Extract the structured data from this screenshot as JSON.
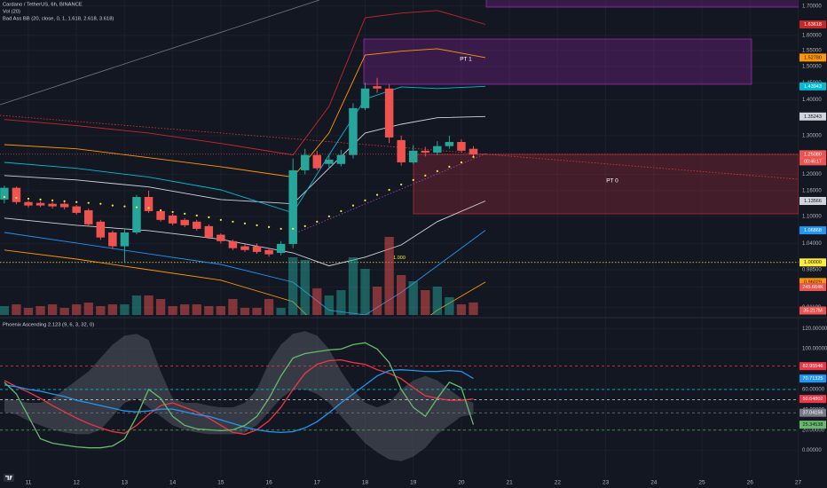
{
  "header": {
    "symbol": "Cardano / TetherUS, 6h, BINANCE",
    "volume_study": "Vol (20)",
    "bands_study": "Bad Ass BB (20, close, 0, 1, 1.618, 2.618, 3.618)"
  },
  "chart_data": [
    {
      "type": "candlestick",
      "x": [
        10.5,
        10.75,
        11,
        11.25,
        11.5,
        11.75,
        12,
        12.25,
        12.5,
        12.75,
        13,
        13.25,
        13.5,
        13.75,
        14,
        14.25,
        14.5,
        14.75,
        15,
        15.25,
        15.5,
        15.75,
        16,
        16.25,
        16.5,
        16.75,
        17,
        17.25,
        17.5,
        17.75,
        18,
        18.25,
        18.5,
        18.75,
        19,
        19.25,
        19.5,
        19.75,
        20,
        20.25
      ],
      "open": [
        1.139,
        1.167,
        1.133,
        1.131,
        1.129,
        1.129,
        1.123,
        1.114,
        1.088,
        1.064,
        1.034,
        1.064,
        1.145,
        1.112,
        1.102,
        1.092,
        1.088,
        1.078,
        1.059,
        1.045,
        1.034,
        1.034,
        1.026,
        1.02,
        1.039,
        1.21,
        1.249,
        1.226,
        1.226,
        1.249,
        1.376,
        1.44,
        1.433,
        1.288,
        1.23,
        1.26,
        1.255,
        1.272,
        1.283,
        1.265
      ],
      "high": [
        1.172,
        1.17,
        1.137,
        1.135,
        1.133,
        1.132,
        1.126,
        1.118,
        1.092,
        1.068,
        1.07,
        1.15,
        1.16,
        1.116,
        1.106,
        1.096,
        1.092,
        1.082,
        1.062,
        1.048,
        1.038,
        1.04,
        1.03,
        1.045,
        1.24,
        1.265,
        1.26,
        1.25,
        1.262,
        1.39,
        1.45,
        1.465,
        1.445,
        1.3,
        1.275,
        1.27,
        1.285,
        1.3,
        1.29,
        1.272
      ],
      "low": [
        1.13,
        1.128,
        1.12,
        1.121,
        1.118,
        1.116,
        1.104,
        1.078,
        1.048,
        1.028,
        1.0,
        1.06,
        1.108,
        1.088,
        1.08,
        1.076,
        1.068,
        1.05,
        1.04,
        1.026,
        1.022,
        1.018,
        1.012,
        1.015,
        1.03,
        1.2,
        1.21,
        1.215,
        1.22,
        1.24,
        1.37,
        1.42,
        1.28,
        1.222,
        1.226,
        1.245,
        1.248,
        1.265,
        1.255,
        1.246
      ],
      "close": [
        1.167,
        1.133,
        1.125,
        1.125,
        1.123,
        1.121,
        1.108,
        1.082,
        1.053,
        1.034,
        1.064,
        1.145,
        1.112,
        1.092,
        1.084,
        1.08,
        1.072,
        1.053,
        1.045,
        1.03,
        1.026,
        1.022,
        1.017,
        1.039,
        1.21,
        1.249,
        1.215,
        1.237,
        1.249,
        1.376,
        1.433,
        1.433,
        1.295,
        1.23,
        1.26,
        1.255,
        1.272,
        1.283,
        1.26,
        1.2508
      ],
      "last_label": "1.25080",
      "countdown": "00:46:17",
      "up_color": "#26a69a",
      "down_color": "#ef5350",
      "volume": {
        "values": [
          25,
          30,
          20,
          25,
          30,
          20,
          30,
          35,
          25,
          30,
          30,
          55,
          55,
          45,
          25,
          30,
          30,
          25,
          25,
          45,
          20,
          20,
          45,
          20,
          162.5,
          155,
          75,
          55,
          70,
          162.5,
          130,
          80,
          220,
          112.5,
          95,
          70,
          80,
          50,
          30,
          35.217
        ],
        "last_label": "35.217M",
        "vlim": [
          0,
          300
        ]
      },
      "volume_tag": "245.664K",
      "basis": {
        "color": "#ffeb3b",
        "values": [
          1.145,
          1.143,
          1.141,
          1.139,
          1.137,
          1.135,
          1.133,
          1.131,
          1.129,
          1.125,
          1.123,
          1.121,
          1.119,
          1.114,
          1.11,
          1.106,
          1.102,
          1.098,
          1.092,
          1.088,
          1.084,
          1.08,
          1.076,
          1.072,
          1.072,
          1.078,
          1.088,
          1.1,
          1.112,
          1.125,
          1.137,
          1.15,
          1.162,
          1.175,
          1.186,
          1.197,
          1.208,
          1.219,
          1.23,
          1.24404
        ],
        "last_label": "1.24404"
      },
      "bands": [
        {
          "color": "#d1d4dc",
          "x": [
            10.5,
            12,
            13.5,
            15,
            16.5,
            17.25,
            18,
            18.75,
            19.5,
            20.5
          ],
          "values": [
            1.197,
            1.186,
            1.169,
            1.139,
            1.129,
            1.215,
            1.307,
            1.331,
            1.349,
            1.35243
          ],
          "last_label": "1.35243"
        },
        {
          "color": "#d1d4dc",
          "x": [
            10.5,
            12,
            13.5,
            15,
            16.5,
            17.25,
            18,
            18.75,
            19.5,
            20.5
          ],
          "values": [
            1.096,
            1.08,
            1.068,
            1.049,
            1.02,
            0.993,
            1.011,
            1.037,
            1.088,
            1.13566
          ],
          "last_label": "1.13566"
        },
        {
          "color": "#00bcd4",
          "x": [
            10.5,
            12,
            13.5,
            15,
            16.5,
            17.25,
            18,
            18.75,
            19.5,
            20.5
          ],
          "values": [
            1.23,
            1.215,
            1.193,
            1.162,
            1.108,
            1.249,
            1.402,
            1.438,
            1.433,
            1.43943
          ],
          "last_label": "1.43943"
        },
        {
          "color": "#2196f3",
          "x": [
            10.5,
            12,
            13.5,
            15,
            16.5,
            17.25,
            18,
            18.75,
            19.5,
            20.5
          ],
          "values": [
            1.064,
            1.041,
            1.018,
            0.996,
            0.96,
            0.906,
            0.897,
            0.94,
            0.993,
            1.06868
          ],
          "last_label": "1.06868"
        },
        {
          "color": "#ff9800",
          "x": [
            10.5,
            12,
            13.5,
            15,
            16.5,
            17.25,
            18,
            18.75,
            19.5,
            20.5
          ],
          "values": [
            1.276,
            1.265,
            1.242,
            1.219,
            1.193,
            1.307,
            1.536,
            1.548,
            1.556,
            1.5278
          ],
          "last_label": "1.52780"
        },
        {
          "color": "#ff9800",
          "x": [
            10.5,
            12,
            13.5,
            15,
            16.5,
            17.25,
            18,
            18.75,
            19.5,
            20.5
          ],
          "values": [
            1.026,
            1.007,
            0.985,
            0.964,
            0.922,
            0.857,
            0.834,
            0.857,
            0.906,
            0.96029
          ],
          "last_label": "0.96029"
        },
        {
          "color": "#c62828",
          "x": [
            10.5,
            12,
            13.5,
            15,
            16.5,
            17.25,
            18,
            18.75,
            19.5,
            20.5
          ],
          "values": [
            1.344,
            1.327,
            1.307,
            1.279,
            1.249,
            1.381,
            1.659,
            1.675,
            1.684,
            1.63618
          ],
          "last_label": "1.63618"
        }
      ],
      "levels": [
        {
          "value": 1,
          "label": "1.00000",
          "line_label": "1.000",
          "color": "#ffeb3b"
        }
      ],
      "annotations": [
        "PT 1",
        "PT 0"
      ],
      "log_scale": true,
      "grid": true,
      "xlim": [
        10.41,
        27.01
      ],
      "xticks": [
        11,
        12,
        13,
        14,
        15,
        16,
        17,
        18,
        19,
        20,
        21,
        22,
        23,
        24,
        25,
        26,
        27
      ],
      "ylim": [
        0.897,
        1.721
      ],
      "yticks": [
        {
          "value": 1.7,
          "label": "1.70000"
        },
        {
          "value": 1.6,
          "label": "1.60000"
        },
        {
          "value": 1.55,
          "label": "1.55000"
        },
        {
          "value": 1.5,
          "label": "1.50000"
        },
        {
          "value": 1.45,
          "label": "1.45000"
        },
        {
          "value": 1.4,
          "label": "1.40000"
        },
        {
          "value": 1.3,
          "label": "1.30000"
        },
        {
          "value": 1.2,
          "label": "1.20000"
        },
        {
          "value": 1.16,
          "label": "1.16000"
        },
        {
          "value": 1.1,
          "label": "1.10000"
        },
        {
          "value": 1.04,
          "label": "1.04000"
        },
        {
          "value": 0.985,
          "label": "0.98500"
        },
        {
          "value": 0.95,
          "label": "0.95000"
        },
        {
          "value": 0.911,
          "label": "0.91100"
        }
      ]
    },
    {
      "type": "line",
      "title": "Phoenix Ascending 2.123 (9, 6, 3, 32, 0)",
      "x": [
        10.5,
        10.75,
        11,
        11.25,
        11.5,
        11.75,
        12,
        12.25,
        12.5,
        12.75,
        13,
        13.25,
        13.5,
        13.75,
        14,
        14.25,
        14.5,
        14.75,
        15,
        15.25,
        15.5,
        15.75,
        16,
        16.25,
        16.5,
        16.75,
        17,
        17.25,
        17.5,
        17.75,
        18,
        18.25,
        18.5,
        18.75,
        19,
        19.25,
        19.5,
        19.75,
        20,
        20.25
      ],
      "band": {
        "color": "#787b86",
        "upper": [
          51.2,
          49.4,
          46.8,
          46.8,
          51.2,
          60,
          68.8,
          77.7,
          90.9,
          104.1,
          113,
          114.7,
          108.6,
          77.7,
          51.2,
          46.8,
          46.8,
          44.1,
          42.4,
          42.4,
          46.8,
          60,
          86.5,
          104.1,
          114.7,
          117.4,
          113,
          99.7,
          77.7,
          60,
          46.8,
          42.4,
          46.8,
          60,
          68.8,
          73.3,
          68.8,
          60,
          51.2,
          46.8
        ],
        "lower": [
          38,
          35.3,
          29.1,
          24.7,
          20.3,
          17.7,
          15.9,
          15.9,
          20.3,
          33.5,
          46.8,
          51.2,
          42.4,
          33.5,
          24.7,
          20.3,
          17.7,
          15.9,
          15.9,
          15.9,
          17.7,
          24.7,
          38,
          51.2,
          60,
          60,
          55.6,
          46.8,
          33.5,
          20.3,
          7.1,
          -1.8,
          -8.8,
          -10.6,
          -6.2,
          2.6,
          15.9,
          24.7,
          33.5,
          35.3
        ]
      },
      "series": [
        {
          "color": "#f23645",
          "values": [
            68.8,
            62.7,
            57.4,
            51.2,
            44.1,
            37.9,
            31.8,
            26.5,
            22.1,
            18.5,
            16.8,
            24.7,
            35.3,
            44.1,
            46.8,
            42.4,
            37.9,
            31.8,
            24.7,
            17.7,
            15.9,
            20.3,
            29.1,
            42.4,
            60,
            75.9,
            84.7,
            88.3,
            89.1,
            86.5,
            84.7,
            79.4,
            75.9,
            70.6,
            61.8,
            53.8,
            51.2,
            49.4,
            49.4,
            50.64802
          ]
        },
        {
          "color": "#2196f3",
          "values": [
            64.4,
            62.7,
            60,
            58.3,
            55.6,
            53,
            49.4,
            46.8,
            44.1,
            41.5,
            38.8,
            38,
            38.8,
            40.6,
            40.6,
            38,
            35.3,
            33.5,
            30,
            26.5,
            22.9,
            20.3,
            18.5,
            17.7,
            18.5,
            22.1,
            28.2,
            37.1,
            46.8,
            55.6,
            64.4,
            73.3,
            78.6,
            79.4,
            78.6,
            77.7,
            77.7,
            78.6,
            77.7,
            70.71325
          ]
        },
        {
          "color": "#66bb6a",
          "values": [
            67.1,
            55.6,
            33.5,
            11.5,
            7.1,
            5.3,
            3.5,
            2.6,
            2.6,
            4.4,
            11.5,
            33.5,
            60,
            51.2,
            33.5,
            24.7,
            21.2,
            20.3,
            19.4,
            20.3,
            24.7,
            33.5,
            51.2,
            73.3,
            90.9,
            95.3,
            97.1,
            98.9,
            99.7,
            104.1,
            105.9,
            99.7,
            86.5,
            60,
            42.4,
            33.5,
            51.2,
            67.1,
            61.8,
            25.34538
          ]
        }
      ],
      "levels": [
        {
          "value": 82.95546,
          "color": "#f23645",
          "tag": true
        },
        {
          "value": 60,
          "color": "#00bcd4",
          "tag": false
        },
        {
          "value": 50,
          "color": "#d1d4dc",
          "tag": false
        },
        {
          "value": 37.04156,
          "color": "#787b86",
          "tag": true
        },
        {
          "value": 20,
          "color": "#4caf50",
          "tag": false
        }
      ],
      "xlim": [
        10.41,
        27.01
      ],
      "ylim": [
        -26.5,
        128.9
      ],
      "yticks": [
        {
          "value": 120,
          "label": "120.00000"
        },
        {
          "value": 100,
          "label": "100.00000"
        },
        {
          "value": 60,
          "label": "60.00000"
        },
        {
          "value": 40,
          "label": "40.00000"
        },
        {
          "value": 20,
          "label": "20.00000"
        },
        {
          "value": 0,
          "label": "0.00000"
        }
      ]
    }
  ]
}
